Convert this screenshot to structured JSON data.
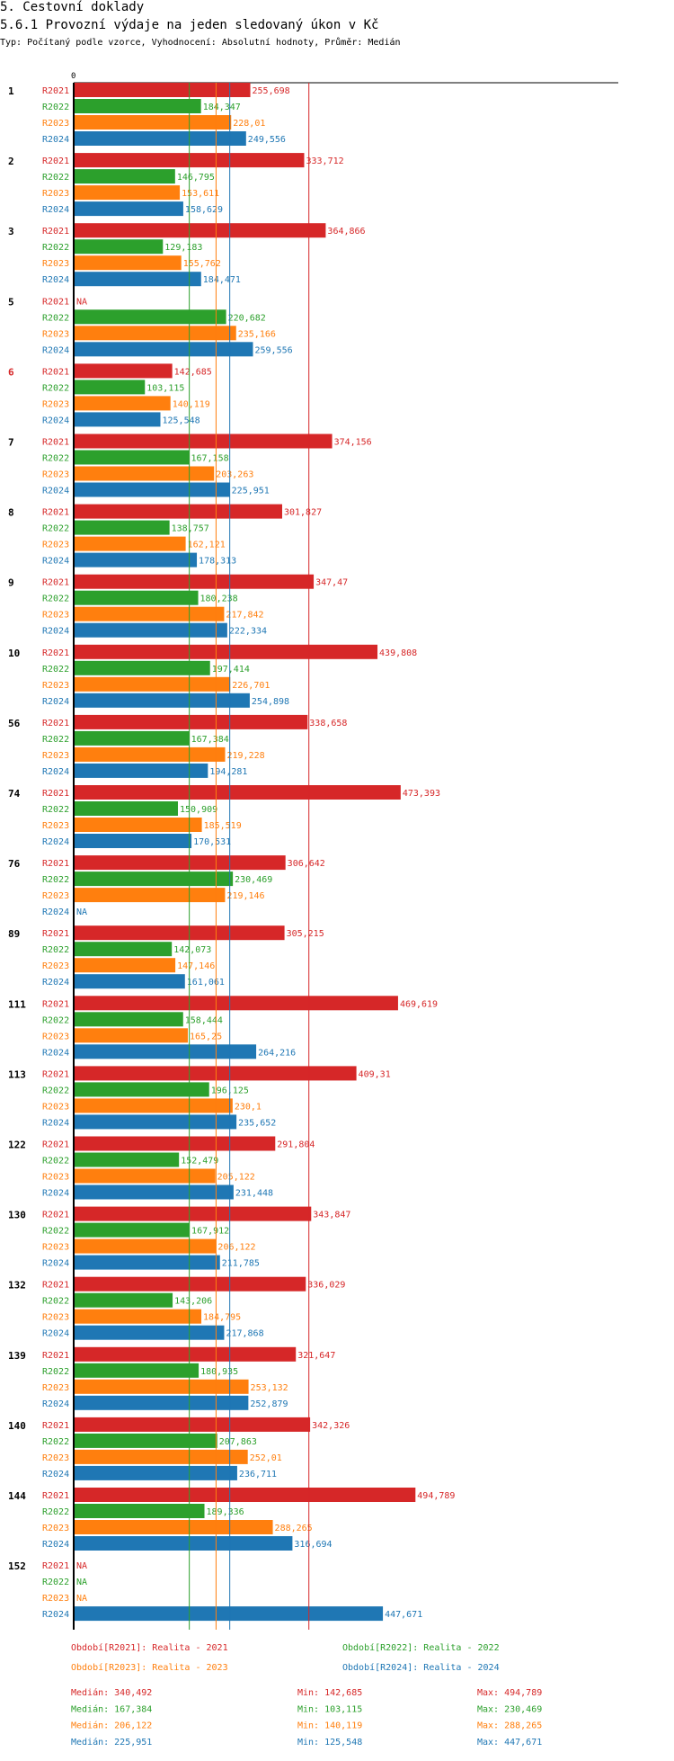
{
  "header": {
    "section": "5. Cestovní doklady",
    "title": "5.6.1 Provozní výdaje na jeden sledovaný úkon v Kč",
    "subtitle": "Typ: Počítaný podle vzorce, Vyhodnocení: Absolutní hodnoty, Průměr: Medián"
  },
  "colors": {
    "R2021": "#d62728",
    "R2022": "#2ca02c",
    "R2023": "#ff7f0e",
    "R2024": "#1f77b4",
    "highlight_group": "#d62728"
  },
  "chart_data": {
    "type": "bar",
    "orientation": "horizontal",
    "x_zero_label": "0",
    "xlim": [
      0,
      550
    ],
    "missing_label": "NA",
    "series": [
      {
        "key": "R2021",
        "name": "R2021",
        "color": "#d62728"
      },
      {
        "key": "R2022",
        "name": "R2022",
        "color": "#2ca02c"
      },
      {
        "key": "R2023",
        "name": "R2023",
        "color": "#ff7f0e"
      },
      {
        "key": "R2024",
        "name": "R2024",
        "color": "#1f77b4"
      }
    ],
    "groups": [
      {
        "label": "1",
        "highlight": false,
        "values": [
          [
            "R2021",
            "255,698",
            255.698
          ],
          [
            "R2022",
            "184,347",
            184.347
          ],
          [
            "R2023",
            "228,01",
            228.01
          ],
          [
            "R2024",
            "249,556",
            249.556
          ]
        ]
      },
      {
        "label": "2",
        "highlight": false,
        "values": [
          [
            "R2021",
            "333,712",
            333.712
          ],
          [
            "R2022",
            "146,795",
            146.795
          ],
          [
            "R2023",
            "153,611",
            153.611
          ],
          [
            "R2024",
            "158,629",
            158.629
          ]
        ]
      },
      {
        "label": "3",
        "highlight": false,
        "values": [
          [
            "R2021",
            "364,866",
            364.866
          ],
          [
            "R2022",
            "129,183",
            129.183
          ],
          [
            "R2023",
            "155,762",
            155.762
          ],
          [
            "R2024",
            "184,471",
            184.471
          ]
        ]
      },
      {
        "label": "5",
        "highlight": false,
        "values": [
          [
            "R2021",
            null,
            null
          ],
          [
            "R2022",
            "220,682",
            220.682
          ],
          [
            "R2023",
            "235,166",
            235.166
          ],
          [
            "R2024",
            "259,556",
            259.556
          ]
        ]
      },
      {
        "label": "6",
        "highlight": true,
        "values": [
          [
            "R2021",
            "142,685",
            142.685
          ],
          [
            "R2022",
            "103,115",
            103.115
          ],
          [
            "R2023",
            "140,119",
            140.119
          ],
          [
            "R2024",
            "125,548",
            125.548
          ]
        ]
      },
      {
        "label": "7",
        "highlight": false,
        "values": [
          [
            "R2021",
            "374,156",
            374.156
          ],
          [
            "R2022",
            "167,158",
            167.158
          ],
          [
            "R2023",
            "203,263",
            203.263
          ],
          [
            "R2024",
            "225,951",
            225.951
          ]
        ]
      },
      {
        "label": "8",
        "highlight": false,
        "values": [
          [
            "R2021",
            "301,827",
            301.827
          ],
          [
            "R2022",
            "138,757",
            138.757
          ],
          [
            "R2023",
            "162,121",
            162.121
          ],
          [
            "R2024",
            "178,313",
            178.313
          ]
        ]
      },
      {
        "label": "9",
        "highlight": false,
        "values": [
          [
            "R2021",
            "347,47",
            347.47
          ],
          [
            "R2022",
            "180,238",
            180.238
          ],
          [
            "R2023",
            "217,842",
            217.842
          ],
          [
            "R2024",
            "222,334",
            222.334
          ]
        ]
      },
      {
        "label": "10",
        "highlight": false,
        "values": [
          [
            "R2021",
            "439,808",
            439.808
          ],
          [
            "R2022",
            "197,414",
            197.414
          ],
          [
            "R2023",
            "226,701",
            226.701
          ],
          [
            "R2024",
            "254,898",
            254.898
          ]
        ]
      },
      {
        "label": "56",
        "highlight": false,
        "values": [
          [
            "R2021",
            "338,658",
            338.658
          ],
          [
            "R2022",
            "167,384",
            167.384
          ],
          [
            "R2023",
            "219,228",
            219.228
          ],
          [
            "R2024",
            "194,281",
            194.281
          ]
        ]
      },
      {
        "label": "74",
        "highlight": false,
        "values": [
          [
            "R2021",
            "473,393",
            473.393
          ],
          [
            "R2022",
            "150,909",
            150.909
          ],
          [
            "R2023",
            "185,519",
            185.519
          ],
          [
            "R2024",
            "170,531",
            170.531
          ]
        ]
      },
      {
        "label": "76",
        "highlight": false,
        "values": [
          [
            "R2021",
            "306,642",
            306.642
          ],
          [
            "R2022",
            "230,469",
            230.469
          ],
          [
            "R2023",
            "219,146",
            219.146
          ],
          [
            "R2024",
            null,
            null
          ]
        ]
      },
      {
        "label": "89",
        "highlight": false,
        "values": [
          [
            "R2021",
            "305,215",
            305.215
          ],
          [
            "R2022",
            "142,073",
            142.073
          ],
          [
            "R2023",
            "147,146",
            147.146
          ],
          [
            "R2024",
            "161,061",
            161.061
          ]
        ]
      },
      {
        "label": "111",
        "highlight": false,
        "values": [
          [
            "R2021",
            "469,619",
            469.619
          ],
          [
            "R2022",
            "158,444",
            158.444
          ],
          [
            "R2023",
            "165,25",
            165.25
          ],
          [
            "R2024",
            "264,216",
            264.216
          ]
        ]
      },
      {
        "label": "113",
        "highlight": false,
        "values": [
          [
            "R2021",
            "409,31",
            409.31
          ],
          [
            "R2022",
            "196,125",
            196.125
          ],
          [
            "R2023",
            "230,1",
            230.1
          ],
          [
            "R2024",
            "235,652",
            235.652
          ]
        ]
      },
      {
        "label": "122",
        "highlight": false,
        "values": [
          [
            "R2021",
            "291,804",
            291.804
          ],
          [
            "R2022",
            "152,479",
            152.479
          ],
          [
            "R2023",
            "205,122",
            205.122
          ],
          [
            "R2024",
            "231,448",
            231.448
          ]
        ]
      },
      {
        "label": "130",
        "highlight": false,
        "values": [
          [
            "R2021",
            "343,847",
            343.847
          ],
          [
            "R2022",
            "167,912",
            167.912
          ],
          [
            "R2023",
            "206,122",
            206.122
          ],
          [
            "R2024",
            "211,785",
            211.785
          ]
        ]
      },
      {
        "label": "132",
        "highlight": false,
        "values": [
          [
            "R2021",
            "336,029",
            336.029
          ],
          [
            "R2022",
            "143,206",
            143.206
          ],
          [
            "R2023",
            "184,795",
            184.795
          ],
          [
            "R2024",
            "217,868",
            217.868
          ]
        ]
      },
      {
        "label": "139",
        "highlight": false,
        "values": [
          [
            "R2021",
            "321,647",
            321.647
          ],
          [
            "R2022",
            "180,935",
            180.935
          ],
          [
            "R2023",
            "253,132",
            253.132
          ],
          [
            "R2024",
            "252,879",
            252.879
          ]
        ]
      },
      {
        "label": "140",
        "highlight": false,
        "values": [
          [
            "R2021",
            "342,326",
            342.326
          ],
          [
            "R2022",
            "207,863",
            207.863
          ],
          [
            "R2023",
            "252,01",
            252.01
          ],
          [
            "R2024",
            "236,711",
            236.711
          ]
        ]
      },
      {
        "label": "144",
        "highlight": false,
        "values": [
          [
            "R2021",
            "494,789",
            494.789
          ],
          [
            "R2022",
            "189,336",
            189.336
          ],
          [
            "R2023",
            "288,265",
            288.265
          ],
          [
            "R2024",
            "316,694",
            316.694
          ]
        ]
      },
      {
        "label": "152",
        "highlight": false,
        "values": [
          [
            "R2021",
            null,
            null
          ],
          [
            "R2022",
            null,
            null
          ],
          [
            "R2023",
            null,
            null
          ],
          [
            "R2024",
            "447,671",
            447.671
          ]
        ]
      }
    ],
    "reference_lines": [
      {
        "series": "R2021",
        "value": 340.492
      },
      {
        "series": "R2022",
        "value": 167.384
      },
      {
        "series": "R2023",
        "value": 206.122
      },
      {
        "series": "R2024",
        "value": 225.951
      }
    ],
    "legend": [
      {
        "series": "R2021",
        "text": "Období[R2021]: Realita - 2021"
      },
      {
        "series": "R2022",
        "text": "Období[R2022]: Realita - 2022"
      },
      {
        "series": "R2023",
        "text": "Období[R2023]: Realita - 2023"
      },
      {
        "series": "R2024",
        "text": "Období[R2024]: Realita - 2024"
      }
    ],
    "stats": [
      {
        "series": "R2021",
        "median": "Medián: 340,492",
        "min": "Min: 142,685",
        "max": "Max: 494,789"
      },
      {
        "series": "R2022",
        "median": "Medián: 167,384",
        "min": "Min: 103,115",
        "max": "Max: 230,469"
      },
      {
        "series": "R2023",
        "median": "Medián: 206,122",
        "min": "Min: 140,119",
        "max": "Max: 288,265"
      },
      {
        "series": "R2024",
        "median": "Medián: 225,951",
        "min": "Min: 125,548",
        "max": "Max: 447,671"
      }
    ]
  }
}
